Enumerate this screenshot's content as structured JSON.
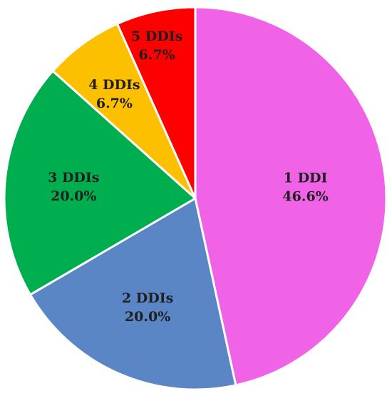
{
  "chart_data": {
    "type": "pie",
    "slices": [
      {
        "label": "1 DDI",
        "value": 46.6,
        "value_label": "46.6%",
        "color": "#F063E6"
      },
      {
        "label": "2 DDIs",
        "value": 20.0,
        "value_label": "20.0%",
        "color": "#5B86C6"
      },
      {
        "label": "3 DDIs",
        "value": 20.0,
        "value_label": "20.0%",
        "color": "#00AE4F"
      },
      {
        "label": "4 DDIs",
        "value": 6.7,
        "value_label": "6.7%",
        "color": "#FDC000"
      },
      {
        "label": "5 DDIs",
        "value": 6.7,
        "value_label": "6.7%",
        "color": "#FE0000"
      }
    ],
    "start_angle_deg": 0,
    "direction": "clockwise",
    "slice_border_color": "#ffffff",
    "legend": "none"
  }
}
